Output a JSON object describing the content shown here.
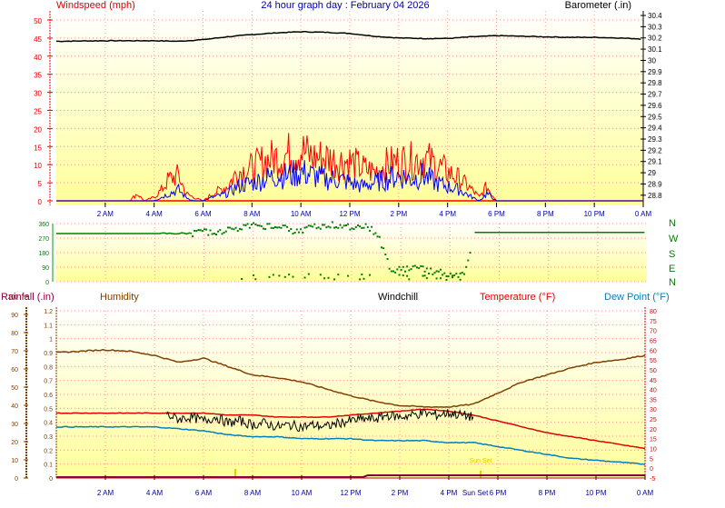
{
  "title": "24 hour graph day : February 04 2026",
  "colors": {
    "wind_avg": "#ff0000",
    "wind_gust": "#0000ff",
    "barometer": "#000000",
    "direction": "#008000",
    "humidity": "#804000",
    "windchill": "#000000",
    "temperature": "#e00000",
    "dewpoint": "#0080c0",
    "rainfall": "#800040",
    "sun": "#d8d000",
    "grid": "#ff9999",
    "axis_left": "#ff0000",
    "axis_rain": "#804000",
    "bg_top": "#ffffff",
    "bg_bottom": "#ffff99"
  },
  "chart_data": [
    {
      "type": "line",
      "title": "24 hour graph day : February 04 2026",
      "ylabel": "Windspeed (mph)",
      "y2label": "Barometer (.in)",
      "ylim": [
        0,
        50
      ],
      "y_ticks": [
        0,
        5,
        10,
        15,
        20,
        25,
        30,
        35,
        40,
        45,
        50
      ],
      "y2lim": [
        28.75,
        30.4
      ],
      "y2_ticks": [
        "28.8",
        "28.9",
        "29",
        "29.1",
        "29.2",
        "29.3",
        "29.4",
        "29.5",
        "29.6",
        "29.7",
        "29.8",
        "29.9",
        "30",
        "30.1",
        "30.2",
        "30.3",
        "30.4"
      ],
      "x_labels": [
        "2 AM",
        "4 AM",
        "6 AM",
        "8 AM",
        "10 AM",
        "12 PM",
        "2 PM",
        "4 PM",
        "6 PM",
        "8 PM",
        "10 PM",
        "0 AM"
      ],
      "series": [
        {
          "name": "Barometer",
          "axis": "right",
          "x": [
            0,
            2,
            4,
            5,
            6,
            7,
            8,
            9,
            10,
            11,
            12,
            13,
            14,
            15,
            16,
            17,
            18,
            19,
            20,
            21,
            22,
            23,
            24
          ],
          "values": [
            30.17,
            30.175,
            30.175,
            30.17,
            30.185,
            30.21,
            30.23,
            30.245,
            30.255,
            30.25,
            30.24,
            30.215,
            30.2,
            30.195,
            30.195,
            30.21,
            30.22,
            30.215,
            30.21,
            30.205,
            30.205,
            30.2,
            30.19
          ]
        },
        {
          "name": "Wind speed",
          "axis": "left",
          "x": [
            0,
            3,
            3.3,
            3.6,
            4,
            4.3,
            4.6,
            5,
            5.3,
            5.6,
            6,
            6.4,
            7,
            7.4,
            8,
            8.5,
            9,
            9.5,
            10,
            10.5,
            11,
            11.5,
            12,
            12.5,
            13,
            13.5,
            14,
            14.5,
            15,
            15.5,
            16,
            16.5,
            17,
            17.3,
            17.6,
            18,
            24
          ],
          "values": [
            0,
            0,
            2,
            0,
            1,
            3,
            6,
            7,
            2,
            1,
            0,
            2,
            4,
            8,
            9,
            11,
            12,
            13,
            14,
            12,
            12,
            11,
            11,
            9,
            8,
            10,
            11,
            11,
            12,
            10,
            8,
            6,
            3,
            1,
            4,
            0,
            0
          ]
        },
        {
          "name": "Gust",
          "axis": "left",
          "x": [
            0,
            4,
            4.3,
            4.6,
            5,
            5.3,
            5.6,
            6,
            6.4,
            7,
            7.4,
            8,
            8.5,
            9,
            9.5,
            10,
            10.5,
            11,
            11.5,
            12,
            12.5,
            13,
            13.5,
            14,
            14.5,
            15,
            15.5,
            16,
            16.5,
            17,
            17.3,
            17.6,
            18,
            24
          ],
          "values": [
            0,
            0,
            1,
            2,
            3,
            1,
            0,
            0,
            1,
            2,
            4,
            5,
            6,
            7,
            7,
            8,
            7,
            6,
            6,
            5,
            4,
            5,
            6,
            7,
            6,
            7,
            5,
            4,
            3,
            1,
            0,
            2,
            0,
            0
          ]
        }
      ]
    },
    {
      "type": "scatter",
      "ylabel": "Wind direction",
      "ylim": [
        0,
        360
      ],
      "y_ticks": [
        0,
        90,
        180,
        270,
        360
      ],
      "compass": [
        "N",
        "W",
        "S",
        "E",
        "N"
      ],
      "series": [
        {
          "name": "Direction",
          "x": [
            0,
            4.5,
            5.5,
            6.5,
            7,
            7.5,
            8,
            8.5,
            9,
            9.5,
            10,
            10.5,
            11,
            11.5,
            12,
            12.5,
            13,
            13.6,
            14,
            14.5,
            15,
            15.5,
            16,
            16.5,
            17,
            24
          ],
          "values": [
            298,
            298,
            300,
            310,
            320,
            340,
            345,
            345,
            350,
            310,
            320,
            345,
            350,
            350,
            330,
            350,
            300,
            60,
            80,
            90,
            70,
            60,
            50,
            40,
            305,
            305
          ]
        }
      ]
    },
    {
      "type": "line",
      "ylabel": "Rainfall (.in)",
      "y_ticks_rain": [
        0,
        10,
        20,
        30,
        40,
        50,
        60,
        70,
        80,
        90,
        100
      ],
      "y_ticks_humidity": [
        "0",
        "0.1",
        "0.2",
        "0.3",
        "0.4",
        "0.5",
        "0.6",
        "0.7",
        "0.8",
        "0.9",
        "1",
        "1.1",
        "1.2"
      ],
      "y2_ticks": [
        -5,
        0,
        5,
        10,
        15,
        20,
        25,
        30,
        35,
        40,
        45,
        50,
        55,
        60,
        65,
        70,
        75,
        80
      ],
      "legend": [
        "Humidity",
        "Windchill",
        "Temperature (°F)",
        "Dew Point (°F)"
      ],
      "y2lim": [
        -5,
        80
      ],
      "x_labels": [
        "2 AM",
        "4 AM",
        "6 AM",
        "8 AM",
        "10 AM",
        "12 PM",
        "2 PM",
        "4 PM",
        "6 PM",
        "8 PM",
        "10 PM",
        "0 AM"
      ],
      "annotations": [
        {
          "label": "Sun Set",
          "x": 17.3
        }
      ],
      "series": [
        {
          "name": "Humidity",
          "axis": "left",
          "x": [
            0,
            1,
            2,
            3,
            4,
            5,
            6,
            7,
            8,
            9,
            10,
            11,
            12,
            13,
            14,
            15,
            16,
            17,
            18,
            19,
            20,
            21,
            22,
            23,
            24
          ],
          "values": [
            90,
            91,
            92,
            91,
            88,
            83,
            86,
            80,
            74,
            72,
            69,
            64,
            59,
            55,
            52,
            51,
            51,
            53,
            61,
            69,
            74,
            79,
            83,
            85,
            88
          ]
        },
        {
          "name": "Temperature",
          "axis": "right",
          "x": [
            0,
            2,
            4,
            5,
            6,
            7,
            8,
            9,
            10,
            11,
            12,
            13,
            14,
            15,
            16,
            17,
            18,
            19,
            20,
            21,
            22,
            23,
            24
          ],
          "values": [
            28,
            28,
            28,
            28,
            28,
            27,
            27,
            26,
            26,
            26,
            27,
            28,
            29,
            30,
            29,
            27,
            24,
            21,
            18,
            16,
            14,
            12,
            10
          ]
        },
        {
          "name": "Dew point",
          "axis": "right",
          "x": [
            0,
            2,
            4,
            5,
            6,
            7,
            8,
            9,
            10,
            11,
            12,
            13,
            14,
            15,
            16,
            17,
            18,
            19,
            20,
            21,
            22,
            23,
            24
          ],
          "values": [
            21,
            21,
            21,
            20,
            19,
            17,
            16,
            16,
            15,
            15,
            15,
            14,
            14,
            14,
            13,
            13,
            11,
            9,
            7,
            5,
            4,
            3,
            2
          ]
        },
        {
          "name": "Windchill",
          "axis": "right",
          "x": [
            4.5,
            5,
            5.5,
            6,
            6.5,
            7,
            7.5,
            8,
            8.5,
            9,
            9.5,
            10,
            10.5,
            11,
            11.5,
            12,
            12.5,
            13,
            13.5,
            14,
            14.5,
            15,
            15.5,
            16,
            16.5,
            17
          ],
          "values": [
            27,
            25,
            26,
            24,
            26,
            23,
            24,
            22,
            23,
            21,
            22,
            21,
            22,
            21,
            23,
            24,
            25,
            25,
            27,
            26,
            27,
            28,
            27,
            28,
            27,
            26
          ]
        },
        {
          "name": "Rainfall",
          "axis": "left",
          "x": [
            0,
            12.5,
            12.7,
            24
          ],
          "values": [
            0,
            0,
            1,
            1
          ]
        }
      ]
    }
  ]
}
